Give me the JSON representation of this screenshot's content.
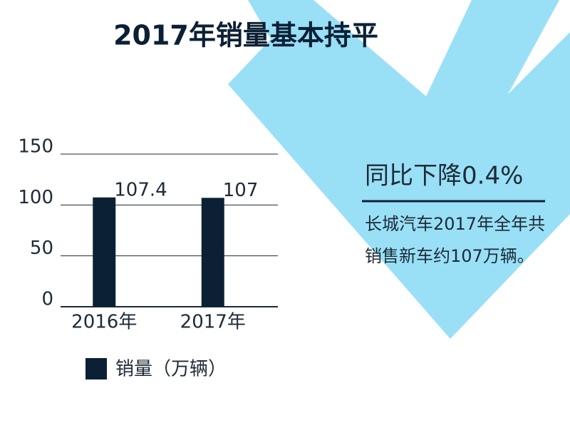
{
  "chart_data": {
    "type": "bar",
    "title": "2017年销量基本持平",
    "categories": [
      "2016年",
      "2017年"
    ],
    "series": [
      {
        "name": "销量（万辆）",
        "color": "#0b2035",
        "values": [
          107.4,
          107
        ]
      }
    ],
    "ylim": [
      0,
      150
    ],
    "yticks": [
      0,
      50,
      100,
      150
    ],
    "grid": true,
    "legend": "bottom",
    "annotation": "同比下降0.4%",
    "description": "长城汽车2017年全年共销售新车约107万辆。"
  }
}
